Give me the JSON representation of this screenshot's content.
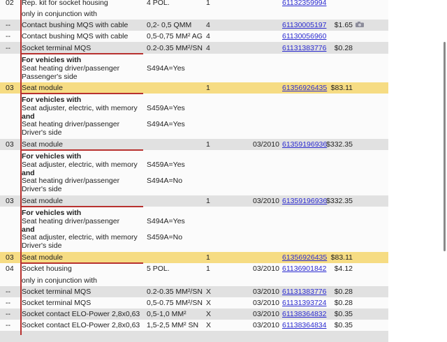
{
  "rows": [
    {
      "num": "02",
      "desc": "Rep. kit for socket housing",
      "spec": "4 POL.",
      "qty": "1",
      "date": "",
      "part": "61132359994",
      "price": ""
    },
    {
      "num": "",
      "desc": "only in conjunction with",
      "spec": "",
      "qty": "",
      "date": "",
      "part": "",
      "price": ""
    },
    {
      "num": "--",
      "desc": "Contact bushing MQS with cable",
      "spec": "0,2- 0,5 QMM",
      "qty": "4",
      "date": "",
      "part": "61130005197",
      "price": "$1.65",
      "icon": "camera-icon"
    },
    {
      "num": "--",
      "desc": "Contact bushing MQS with cable",
      "spec": "0,5-0,75 MM² AG",
      "qty": "4",
      "date": "",
      "part": "61130056960",
      "price": ""
    },
    {
      "num": "--",
      "desc": "Socket terminal MQS",
      "spec": "0.2-0.35 MM²/SN",
      "qty": "4",
      "date": "",
      "part": "61131383776",
      "price": "$0.28"
    },
    {
      "num": "03",
      "desc": "Seat module",
      "spec": "",
      "qty": "1",
      "date": "",
      "part": "61356926435",
      "price": "$83.11"
    },
    {
      "num": "03",
      "desc": "Seat module",
      "spec": "",
      "qty": "1",
      "date": "03/2010",
      "part": "61359196936",
      "price": "$332.35"
    },
    {
      "num": "03",
      "desc": "Seat module",
      "spec": "",
      "qty": "1",
      "date": "03/2010",
      "part": "61359196936",
      "price": "$332.35"
    },
    {
      "num": "03",
      "desc": "Seat module",
      "spec": "",
      "qty": "1",
      "date": "",
      "part": "61356926435",
      "price": "$83.11"
    },
    {
      "num": "04",
      "desc": "Socket housing",
      "spec": "5 POL.",
      "qty": "1",
      "date": "03/2010",
      "part": "61136901842",
      "price": "$4.12"
    },
    {
      "num": "",
      "desc": "only in conjunction with",
      "spec": "",
      "qty": "",
      "date": "",
      "part": "",
      "price": ""
    },
    {
      "num": "--",
      "desc": "Socket terminal MQS",
      "spec": "0.2-0.35 MM²/SN",
      "qty": "X",
      "date": "03/2010",
      "part": "61131383776",
      "price": "$0.28"
    },
    {
      "num": "--",
      "desc": "Socket terminal MQS",
      "spec": "0,5-0.75 MM²/SN",
      "qty": "X",
      "date": "03/2010",
      "part": "61131393724",
      "price": "$0.28"
    },
    {
      "num": "--",
      "desc": "Socket contact ELO-Power 2,8x0,63",
      "spec": "0,5-1,0 MM²",
      "qty": "X",
      "date": "03/2010",
      "part": "61138364832",
      "price": "$0.35"
    },
    {
      "num": "--",
      "desc": "Socket contact ELO-Power 2,8x0,63",
      "spec": "1,5-2,5 MM² SN",
      "qty": "X",
      "date": "03/2010",
      "part": "61138364834",
      "price": "$0.35"
    }
  ],
  "notes": [
    {
      "lines": [
        {
          "t": "For vehicles with",
          "bold": true,
          "s": ""
        },
        {
          "t": "Seat heating driver/passenger",
          "s": "S494A=Yes"
        },
        {
          "t": "Passenger's side",
          "s": ""
        }
      ]
    },
    {
      "lines": [
        {
          "t": "For vehicles with",
          "bold": true,
          "s": ""
        },
        {
          "t": "Seat adjuster, electric, with memory",
          "s": "S459A=Yes"
        },
        {
          "t": "and",
          "bold": true,
          "s": ""
        },
        {
          "t": "Seat heating driver/passenger",
          "s": "S494A=Yes"
        },
        {
          "t": "Driver's side",
          "s": ""
        }
      ]
    },
    {
      "lines": [
        {
          "t": "For vehicles with",
          "bold": true,
          "s": ""
        },
        {
          "t": "Seat adjuster, electric, with memory",
          "s": "S459A=Yes"
        },
        {
          "t": "and",
          "bold": true,
          "s": ""
        },
        {
          "t": "Seat heating driver/passenger",
          "s": "S494A=No"
        },
        {
          "t": "Driver's side",
          "s": ""
        }
      ]
    },
    {
      "lines": [
        {
          "t": "For vehicles with",
          "bold": true,
          "s": ""
        },
        {
          "t": "Seat heating driver/passenger",
          "s": "S494A=Yes"
        },
        {
          "t": "and",
          "bold": true,
          "s": ""
        },
        {
          "t": "Seat adjuster, electric, with memory",
          "s": "S459A=No"
        },
        {
          "t": "Driver's side",
          "s": ""
        }
      ]
    }
  ],
  "colors": {
    "highlight": "#f6dc83",
    "stripe": "#e1e1e1",
    "link": "#2a2ad0",
    "bracket": "#b8312f"
  }
}
